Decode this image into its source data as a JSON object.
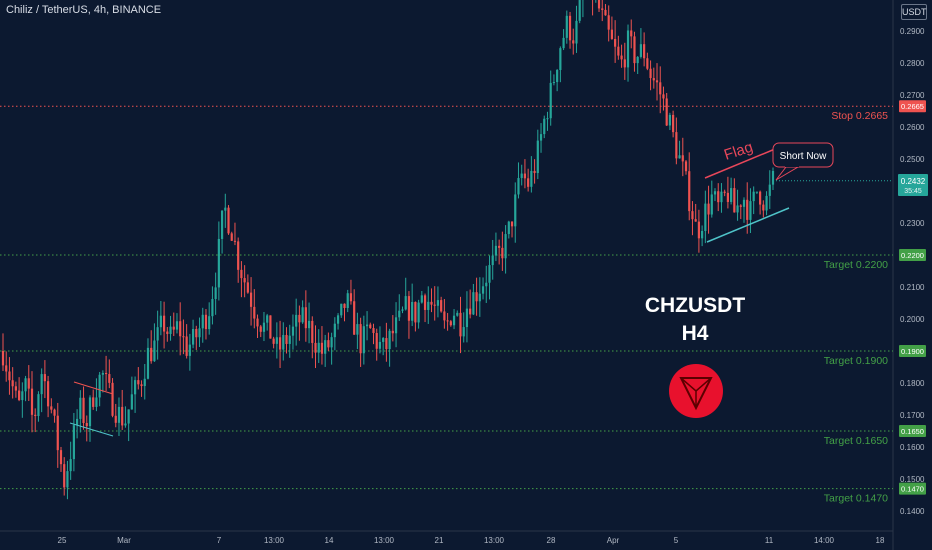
{
  "header": {
    "title": "Chiliz / TetherUS, 4h, BINANCE",
    "quote_badge": "USDT"
  },
  "overlay": {
    "symbol": "CHZUSDT",
    "timeframe": "H4",
    "logo_icon": "chiliz-logo-icon"
  },
  "colors": {
    "background": "#0c1930",
    "bull": "#26a69a",
    "bear": "#ef5350",
    "stop": "#ef5350",
    "target": "#43a047",
    "annotation": "#e8475a",
    "support": "#4fc3c8"
  },
  "chart_data": {
    "type": "candlestick",
    "ylim": [
      0.135,
      0.3
    ],
    "y_ticks": [
      "0.2900",
      "0.2800",
      "0.2700",
      "0.2600",
      "0.2500",
      "0.2400",
      "0.2300",
      "0.2200",
      "0.2100",
      "0.2000",
      "0.1900",
      "0.1800",
      "0.1700",
      "0.1600",
      "0.1500",
      "0.1400"
    ],
    "x_ticks": [
      "25",
      "Mar",
      "7",
      "13:00",
      "14",
      "13:00",
      "21",
      "13:00",
      "28",
      "Apr",
      "5",
      "11",
      "14:00",
      "18"
    ],
    "current_price": {
      "value": "0.2432",
      "countdown": "35:45"
    },
    "levels": [
      {
        "name": "stop",
        "value": 0.2665,
        "label": "Stop 0.2665",
        "tag": "0.2665"
      },
      {
        "name": "target-1",
        "value": 0.22,
        "label": "Target 0.2200",
        "tag": "0.2200"
      },
      {
        "name": "target-2",
        "value": 0.19,
        "label": "Target 0.1900",
        "tag": "0.1900"
      },
      {
        "name": "target-3",
        "value": 0.165,
        "label": "Target 0.1650",
        "tag": "0.1650"
      },
      {
        "name": "target-4",
        "value": 0.147,
        "label": "Target 0.1470",
        "tag": "0.1470"
      }
    ],
    "annotations": {
      "flag": "Flag",
      "short": "Short Now"
    },
    "price_path": [
      [
        0.19,
        0.181,
        0.172,
        0.179,
        0.167,
        0.184,
        0.176,
        0.163,
        0.149,
        0.16,
        0.172
      ],
      [
        0.168,
        0.178,
        0.183,
        0.176,
        0.171,
        0.168,
        0.176,
        0.18,
        0.189
      ],
      [
        0.192,
        0.199,
        0.194,
        0.198,
        0.191,
        0.193,
        0.198,
        0.203,
        0.215,
        0.235,
        0.228,
        0.217
      ],
      [
        0.21,
        0.203,
        0.198,
        0.196,
        0.19,
        0.193,
        0.196,
        0.2,
        0.198,
        0.193,
        0.189
      ],
      [
        0.193,
        0.198,
        0.206,
        0.199,
        0.192,
        0.197,
        0.193,
        0.19,
        0.195,
        0.199,
        0.204,
        0.201,
        0.208,
        0.205
      ],
      [
        0.202,
        0.197,
        0.203,
        0.199,
        0.205,
        0.208,
        0.212,
        0.216,
        0.22,
        0.224,
        0.234,
        0.245,
        0.242,
        0.25
      ],
      [
        0.262,
        0.272,
        0.285,
        0.292,
        0.288,
        0.301,
        0.304,
        0.298,
        0.291,
        0.285,
        0.279,
        0.286,
        0.282,
        0.284
      ],
      [
        0.276,
        0.272,
        0.265,
        0.256,
        0.248,
        0.238,
        0.227
      ],
      [
        0.233,
        0.238,
        0.234,
        0.24,
        0.233,
        0.239,
        0.233,
        0.241,
        0.236,
        0.243
      ]
    ]
  }
}
